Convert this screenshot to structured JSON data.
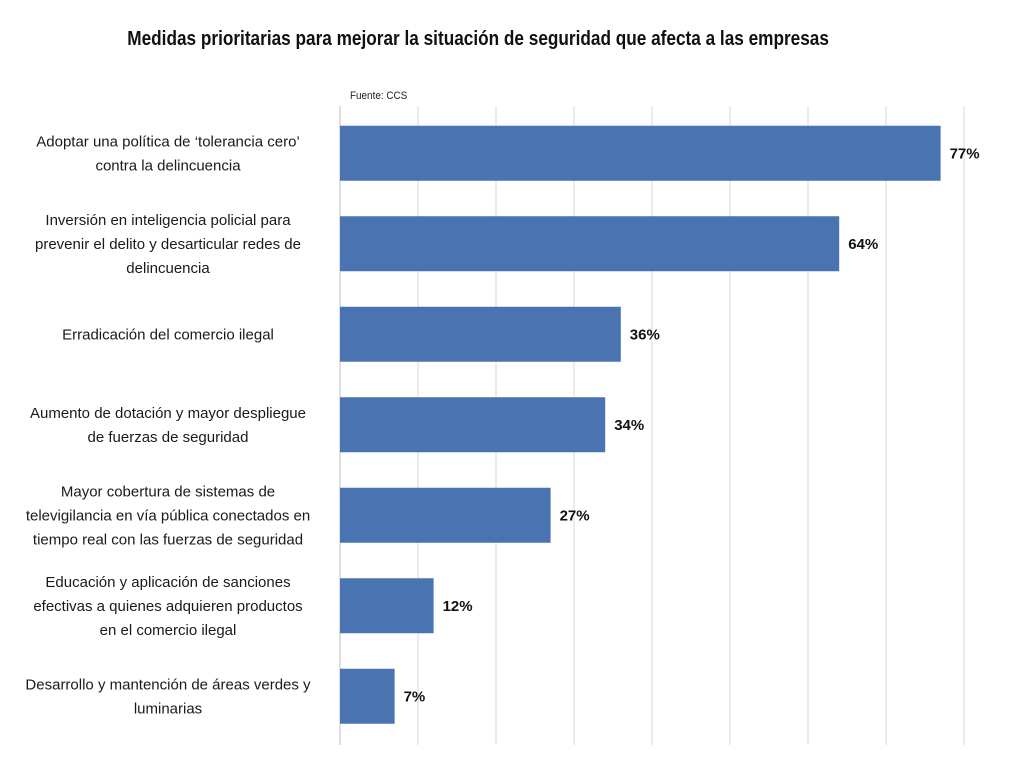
{
  "chart_data": {
    "type": "bar",
    "orientation": "horizontal",
    "title": "Medidas prioritarias para mejorar la situación de seguridad que afecta a las empresas",
    "source": "Fuente: CCS",
    "categories": [
      [
        "Adoptar una política de ‘tolerancia cero’",
        "contra la delincuencia"
      ],
      [
        "Inversión en inteligencia policial para",
        "prevenir el delito y desarticular redes de",
        "delincuencia"
      ],
      [
        "Erradicación del comercio ilegal"
      ],
      [
        "Aumento de dotación y mayor despliegue",
        "de fuerzas de seguridad"
      ],
      [
        "Mayor cobertura de sistemas de",
        "televigilancia en vía pública conectados en",
        "tiempo real con las fuerzas de seguridad"
      ],
      [
        "Educación y aplicación de sanciones",
        "efectivas a quienes adquieren productos",
        "en el comercio ilegal"
      ],
      [
        "Desarrollo y mantención de áreas verdes y",
        "luminarias"
      ]
    ],
    "values": [
      77,
      64,
      36,
      34,
      27,
      12,
      7
    ],
    "value_labels": [
      "77%",
      "64%",
      "36%",
      "34%",
      "27%",
      "12%",
      "7%"
    ],
    "xlim": [
      0,
      80
    ],
    "grid": "vertical",
    "bar_color": "#4a73b1"
  }
}
